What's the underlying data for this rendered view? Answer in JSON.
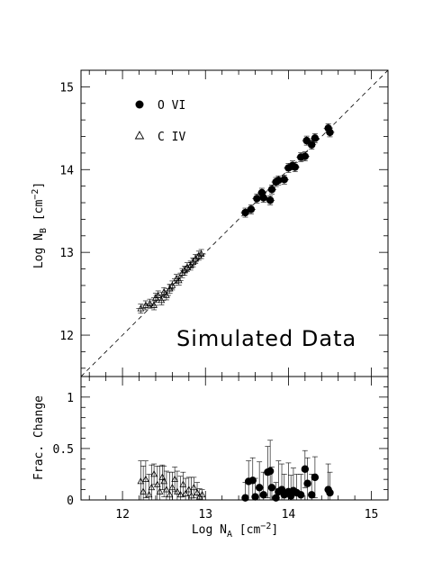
{
  "chart_data": [
    {
      "type": "scatter",
      "panel": "top",
      "xlim": [
        11.5,
        15.2
      ],
      "ylim": [
        11.5,
        15.2
      ],
      "ylabel": {
        "main": "Log N",
        "sub": "B",
        "unit": " [cm",
        "sup": "−2",
        "close": "]"
      },
      "x_ticks": [],
      "y_ticks": [
        "12",
        "13",
        "14",
        "15"
      ],
      "y_tick_values": [
        12,
        13,
        14,
        15
      ],
      "x_tick_values": [
        12,
        13,
        14,
        15
      ],
      "reference_line": "y = x (dashed)",
      "annotation": "Simulated Data",
      "legend": {
        "placement": "top-left",
        "entries": [
          {
            "label": "O VI",
            "marker": "filled-circle"
          },
          {
            "label": "C IV",
            "marker": "open-triangle"
          }
        ]
      },
      "series": [
        {
          "name": "O VI",
          "marker": "filled-circle",
          "points": [
            [
              13.48,
              13.48
            ],
            [
              13.55,
              13.52
            ],
            [
              13.62,
              13.65
            ],
            [
              13.68,
              13.72
            ],
            [
              13.7,
              13.66
            ],
            [
              13.78,
              13.63
            ],
            [
              13.8,
              13.76
            ],
            [
              13.85,
              13.85
            ],
            [
              13.88,
              13.87
            ],
            [
              13.95,
              13.88
            ],
            [
              14.0,
              14.02
            ],
            [
              14.05,
              14.05
            ],
            [
              14.08,
              14.03
            ],
            [
              14.15,
              14.15
            ],
            [
              14.2,
              14.16
            ],
            [
              14.22,
              14.35
            ],
            [
              14.28,
              14.3
            ],
            [
              14.32,
              14.38
            ],
            [
              14.48,
              14.5
            ],
            [
              14.5,
              14.45
            ]
          ]
        },
        {
          "name": "C IV",
          "marker": "open-triangle",
          "points": [
            [
              12.22,
              12.32
            ],
            [
              12.28,
              12.36
            ],
            [
              12.33,
              12.38
            ],
            [
              12.38,
              12.36
            ],
            [
              12.4,
              12.45
            ],
            [
              12.43,
              12.48
            ],
            [
              12.47,
              12.42
            ],
            [
              12.5,
              12.52
            ],
            [
              12.53,
              12.48
            ],
            [
              12.57,
              12.56
            ],
            [
              12.6,
              12.6
            ],
            [
              12.65,
              12.68
            ],
            [
              12.68,
              12.66
            ],
            [
              12.72,
              12.75
            ],
            [
              12.75,
              12.78
            ],
            [
              12.78,
              12.82
            ],
            [
              12.82,
              12.84
            ],
            [
              12.85,
              12.88
            ],
            [
              12.88,
              12.92
            ],
            [
              12.92,
              12.96
            ],
            [
              12.95,
              12.98
            ]
          ]
        }
      ]
    },
    {
      "type": "scatter",
      "panel": "bottom",
      "xlim": [
        11.5,
        15.2
      ],
      "ylim": [
        0,
        1.2
      ],
      "xlabel": {
        "main": "Log N",
        "sub": "A",
        "unit": " [cm",
        "sup": "−2",
        "close": "]"
      },
      "ylabel": "Frac. Change",
      "x_ticks": [
        "12",
        "13",
        "14",
        "15"
      ],
      "x_tick_values": [
        12,
        13,
        14,
        15
      ],
      "y_ticks": [
        "0",
        "0.5",
        "1"
      ],
      "y_tick_values": [
        0,
        0.5,
        1.0
      ],
      "series": [
        {
          "name": "O VI",
          "marker": "filled-circle",
          "points": [
            [
              13.48,
              0.02,
              0.15
            ],
            [
              13.52,
              0.18,
              0.2
            ],
            [
              13.57,
              0.19,
              0.22
            ],
            [
              13.6,
              0.03,
              0.18
            ],
            [
              13.65,
              0.12,
              0.25
            ],
            [
              13.7,
              0.05,
              0.22
            ],
            [
              13.75,
              0.27,
              0.25
            ],
            [
              13.78,
              0.28,
              0.3
            ],
            [
              13.8,
              0.12,
              0.2
            ],
            [
              13.85,
              0.02,
              0.15
            ],
            [
              13.88,
              0.08,
              0.3
            ],
            [
              13.92,
              0.1,
              0.25
            ],
            [
              13.95,
              0.05,
              0.2
            ],
            [
              14.0,
              0.08,
              0.28
            ],
            [
              14.03,
              0.04,
              0.2
            ],
            [
              14.06,
              0.09,
              0.22
            ],
            [
              14.1,
              0.07,
              0.18
            ],
            [
              14.15,
              0.05,
              0.2
            ],
            [
              14.2,
              0.3,
              0.18
            ],
            [
              14.23,
              0.16,
              0.25
            ],
            [
              14.28,
              0.05,
              0.2
            ],
            [
              14.32,
              0.22,
              0.2
            ],
            [
              14.48,
              0.1,
              0.25
            ],
            [
              14.5,
              0.07,
              0.2
            ]
          ]
        },
        {
          "name": "C IV",
          "marker": "open-triangle",
          "points": [
            [
              12.22,
              0.18,
              0.2
            ],
            [
              12.25,
              0.08,
              0.25
            ],
            [
              12.28,
              0.2,
              0.18
            ],
            [
              12.32,
              0.05,
              0.2
            ],
            [
              12.35,
              0.12,
              0.22
            ],
            [
              12.38,
              0.25,
              0.1
            ],
            [
              12.42,
              0.15,
              0.18
            ],
            [
              12.45,
              0.08,
              0.25
            ],
            [
              12.48,
              0.22,
              0.12
            ],
            [
              12.5,
              0.18,
              0.15
            ],
            [
              12.53,
              0.1,
              0.18
            ],
            [
              12.57,
              0.05,
              0.22
            ],
            [
              12.6,
              0.12,
              0.15
            ],
            [
              12.63,
              0.2,
              0.12
            ],
            [
              12.66,
              0.08,
              0.2
            ],
            [
              12.7,
              0.05,
              0.18
            ],
            [
              12.73,
              0.15,
              0.12
            ],
            [
              12.76,
              0.06,
              0.15
            ],
            [
              12.8,
              0.1,
              0.12
            ],
            [
              12.83,
              0.04,
              0.18
            ],
            [
              12.86,
              0.12,
              0.1
            ],
            [
              12.9,
              0.07,
              0.1
            ],
            [
              12.93,
              0.03,
              0.08
            ],
            [
              12.96,
              0.05,
              0.05
            ]
          ]
        }
      ]
    }
  ]
}
